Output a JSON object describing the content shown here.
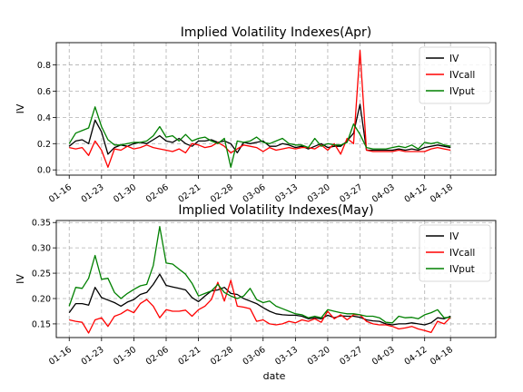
{
  "figure": {
    "xlabel": "date"
  },
  "chart_data": [
    {
      "type": "line",
      "title": "Implied Volatility Indexes(Apr)",
      "xlabel": "",
      "ylabel": "IV",
      "xlim": [
        -2,
        66
      ],
      "ylim": [
        -0.04,
        0.97
      ],
      "yticks": [
        0.0,
        0.2,
        0.4,
        0.6,
        0.8
      ],
      "ytick_labels": [
        "0.0",
        "0.2",
        "0.4",
        "0.6",
        "0.8"
      ],
      "xticks": [
        {
          "pos": 0,
          "label": "01-16"
        },
        {
          "pos": 5,
          "label": "01-23"
        },
        {
          "pos": 10,
          "label": "01-30"
        },
        {
          "pos": 15,
          "label": "02-06"
        },
        {
          "pos": 20,
          "label": "02-21"
        },
        {
          "pos": 25,
          "label": "02-28"
        },
        {
          "pos": 30,
          "label": "03-06"
        },
        {
          "pos": 35,
          "label": "03-13"
        },
        {
          "pos": 40,
          "label": "03-20"
        },
        {
          "pos": 45,
          "label": "03-27"
        },
        {
          "pos": 50,
          "label": "04-03"
        },
        {
          "pos": 55,
          "label": "04-12"
        },
        {
          "pos": 59,
          "label": "04-18"
        }
      ],
      "grid": true,
      "legend": "top-right",
      "series": [
        {
          "name": "IV",
          "color": "#000000",
          "values": [
            0.18,
            0.22,
            0.23,
            0.2,
            0.38,
            0.29,
            0.12,
            0.17,
            0.19,
            0.18,
            0.2,
            0.21,
            0.2,
            0.23,
            0.26,
            0.22,
            0.21,
            0.24,
            0.2,
            0.18,
            0.22,
            0.22,
            0.23,
            0.21,
            0.22,
            0.2,
            0.13,
            0.21,
            0.2,
            0.21,
            0.22,
            0.18,
            0.18,
            0.2,
            0.19,
            0.17,
            0.18,
            0.16,
            0.18,
            0.2,
            0.17,
            0.18,
            0.18,
            0.22,
            0.28,
            0.5,
            0.15,
            0.15,
            0.15,
            0.15,
            0.15,
            0.16,
            0.15,
            0.16,
            0.15,
            0.17,
            0.18,
            0.19,
            0.18,
            0.17
          ]
        },
        {
          "name": "IVcall",
          "color": "#ff0000",
          "values": [
            0.17,
            0.16,
            0.17,
            0.11,
            0.22,
            0.15,
            0.02,
            0.16,
            0.15,
            0.18,
            0.16,
            0.17,
            0.19,
            0.17,
            0.16,
            0.15,
            0.14,
            0.16,
            0.13,
            0.2,
            0.19,
            0.17,
            0.18,
            0.21,
            0.18,
            0.13,
            0.16,
            0.19,
            0.18,
            0.17,
            0.14,
            0.17,
            0.15,
            0.16,
            0.17,
            0.16,
            0.17,
            0.17,
            0.16,
            0.19,
            0.15,
            0.2,
            0.12,
            0.24,
            0.2,
            0.91,
            0.15,
            0.14,
            0.14,
            0.14,
            0.14,
            0.15,
            0.14,
            0.14,
            0.14,
            0.14,
            0.16,
            0.17,
            0.16,
            0.15
          ]
        },
        {
          "name": "IVput",
          "color": "#008000",
          "values": [
            0.2,
            0.28,
            0.3,
            0.32,
            0.48,
            0.33,
            0.23,
            0.19,
            0.19,
            0.2,
            0.21,
            0.21,
            0.22,
            0.26,
            0.33,
            0.25,
            0.26,
            0.22,
            0.27,
            0.22,
            0.24,
            0.25,
            0.22,
            0.2,
            0.24,
            0.02,
            0.22,
            0.21,
            0.22,
            0.25,
            0.21,
            0.2,
            0.22,
            0.24,
            0.2,
            0.19,
            0.19,
            0.17,
            0.24,
            0.18,
            0.2,
            0.19,
            0.19,
            0.21,
            0.35,
            0.27,
            0.17,
            0.16,
            0.16,
            0.16,
            0.17,
            0.18,
            0.17,
            0.19,
            0.16,
            0.21,
            0.2,
            0.21,
            0.19,
            0.18
          ]
        }
      ]
    },
    {
      "type": "line",
      "title": "Implied Volatility Indexes(May)",
      "xlabel": "date",
      "ylabel": "IV",
      "xlim": [
        -2,
        66
      ],
      "ylim": [
        0.123,
        0.354
      ],
      "yticks": [
        0.15,
        0.2,
        0.25,
        0.3,
        0.35
      ],
      "ytick_labels": [
        "0.15",
        "0.20",
        "0.25",
        "0.30",
        "0.35"
      ],
      "xticks": [
        {
          "pos": 0,
          "label": "01-16"
        },
        {
          "pos": 5,
          "label": "01-23"
        },
        {
          "pos": 10,
          "label": "01-30"
        },
        {
          "pos": 15,
          "label": "02-06"
        },
        {
          "pos": 20,
          "label": "02-21"
        },
        {
          "pos": 25,
          "label": "02-28"
        },
        {
          "pos": 30,
          "label": "03-06"
        },
        {
          "pos": 35,
          "label": "03-13"
        },
        {
          "pos": 40,
          "label": "03-20"
        },
        {
          "pos": 45,
          "label": "03-27"
        },
        {
          "pos": 50,
          "label": "04-03"
        },
        {
          "pos": 55,
          "label": "04-12"
        },
        {
          "pos": 59,
          "label": "04-18"
        }
      ],
      "grid": true,
      "legend": "top-right",
      "series": [
        {
          "name": "IV",
          "color": "#000000",
          "values": [
            0.172,
            0.19,
            0.19,
            0.187,
            0.222,
            0.202,
            0.197,
            0.192,
            0.185,
            0.193,
            0.198,
            0.208,
            0.212,
            0.228,
            0.248,
            0.226,
            0.223,
            0.22,
            0.217,
            0.202,
            0.194,
            0.205,
            0.215,
            0.217,
            0.222,
            0.21,
            0.208,
            0.2,
            0.195,
            0.19,
            0.182,
            0.175,
            0.17,
            0.168,
            0.167,
            0.167,
            0.165,
            0.16,
            0.162,
            0.16,
            0.167,
            0.162,
            0.166,
            0.165,
            0.165,
            0.163,
            0.158,
            0.156,
            0.155,
            0.15,
            0.148,
            0.15,
            0.15,
            0.152,
            0.15,
            0.148,
            0.152,
            0.162,
            0.16,
            0.165
          ]
        },
        {
          "name": "IVcall",
          "color": "#ff0000",
          "values": [
            0.158,
            0.155,
            0.153,
            0.132,
            0.158,
            0.162,
            0.145,
            0.165,
            0.17,
            0.178,
            0.172,
            0.19,
            0.198,
            0.185,
            0.162,
            0.178,
            0.175,
            0.175,
            0.177,
            0.165,
            0.178,
            0.185,
            0.198,
            0.232,
            0.195,
            0.236,
            0.185,
            0.183,
            0.18,
            0.155,
            0.158,
            0.15,
            0.148,
            0.15,
            0.155,
            0.152,
            0.158,
            0.155,
            0.16,
            0.153,
            0.175,
            0.16,
            0.168,
            0.158,
            0.168,
            0.168,
            0.155,
            0.15,
            0.148,
            0.148,
            0.145,
            0.14,
            0.142,
            0.145,
            0.14,
            0.137,
            0.133,
            0.155,
            0.15,
            0.163
          ]
        },
        {
          "name": "IVput",
          "color": "#008000",
          "values": [
            0.185,
            0.222,
            0.22,
            0.24,
            0.285,
            0.238,
            0.24,
            0.212,
            0.2,
            0.21,
            0.218,
            0.225,
            0.228,
            0.265,
            0.342,
            0.27,
            0.268,
            0.258,
            0.248,
            0.23,
            0.205,
            0.21,
            0.215,
            0.228,
            0.212,
            0.205,
            0.2,
            0.205,
            0.22,
            0.198,
            0.192,
            0.195,
            0.185,
            0.18,
            0.175,
            0.17,
            0.168,
            0.162,
            0.165,
            0.162,
            0.178,
            0.175,
            0.172,
            0.17,
            0.17,
            0.168,
            0.165,
            0.165,
            0.162,
            0.153,
            0.152,
            0.165,
            0.162,
            0.163,
            0.16,
            0.168,
            0.172,
            0.178,
            0.162,
            0.163
          ]
        }
      ]
    }
  ]
}
